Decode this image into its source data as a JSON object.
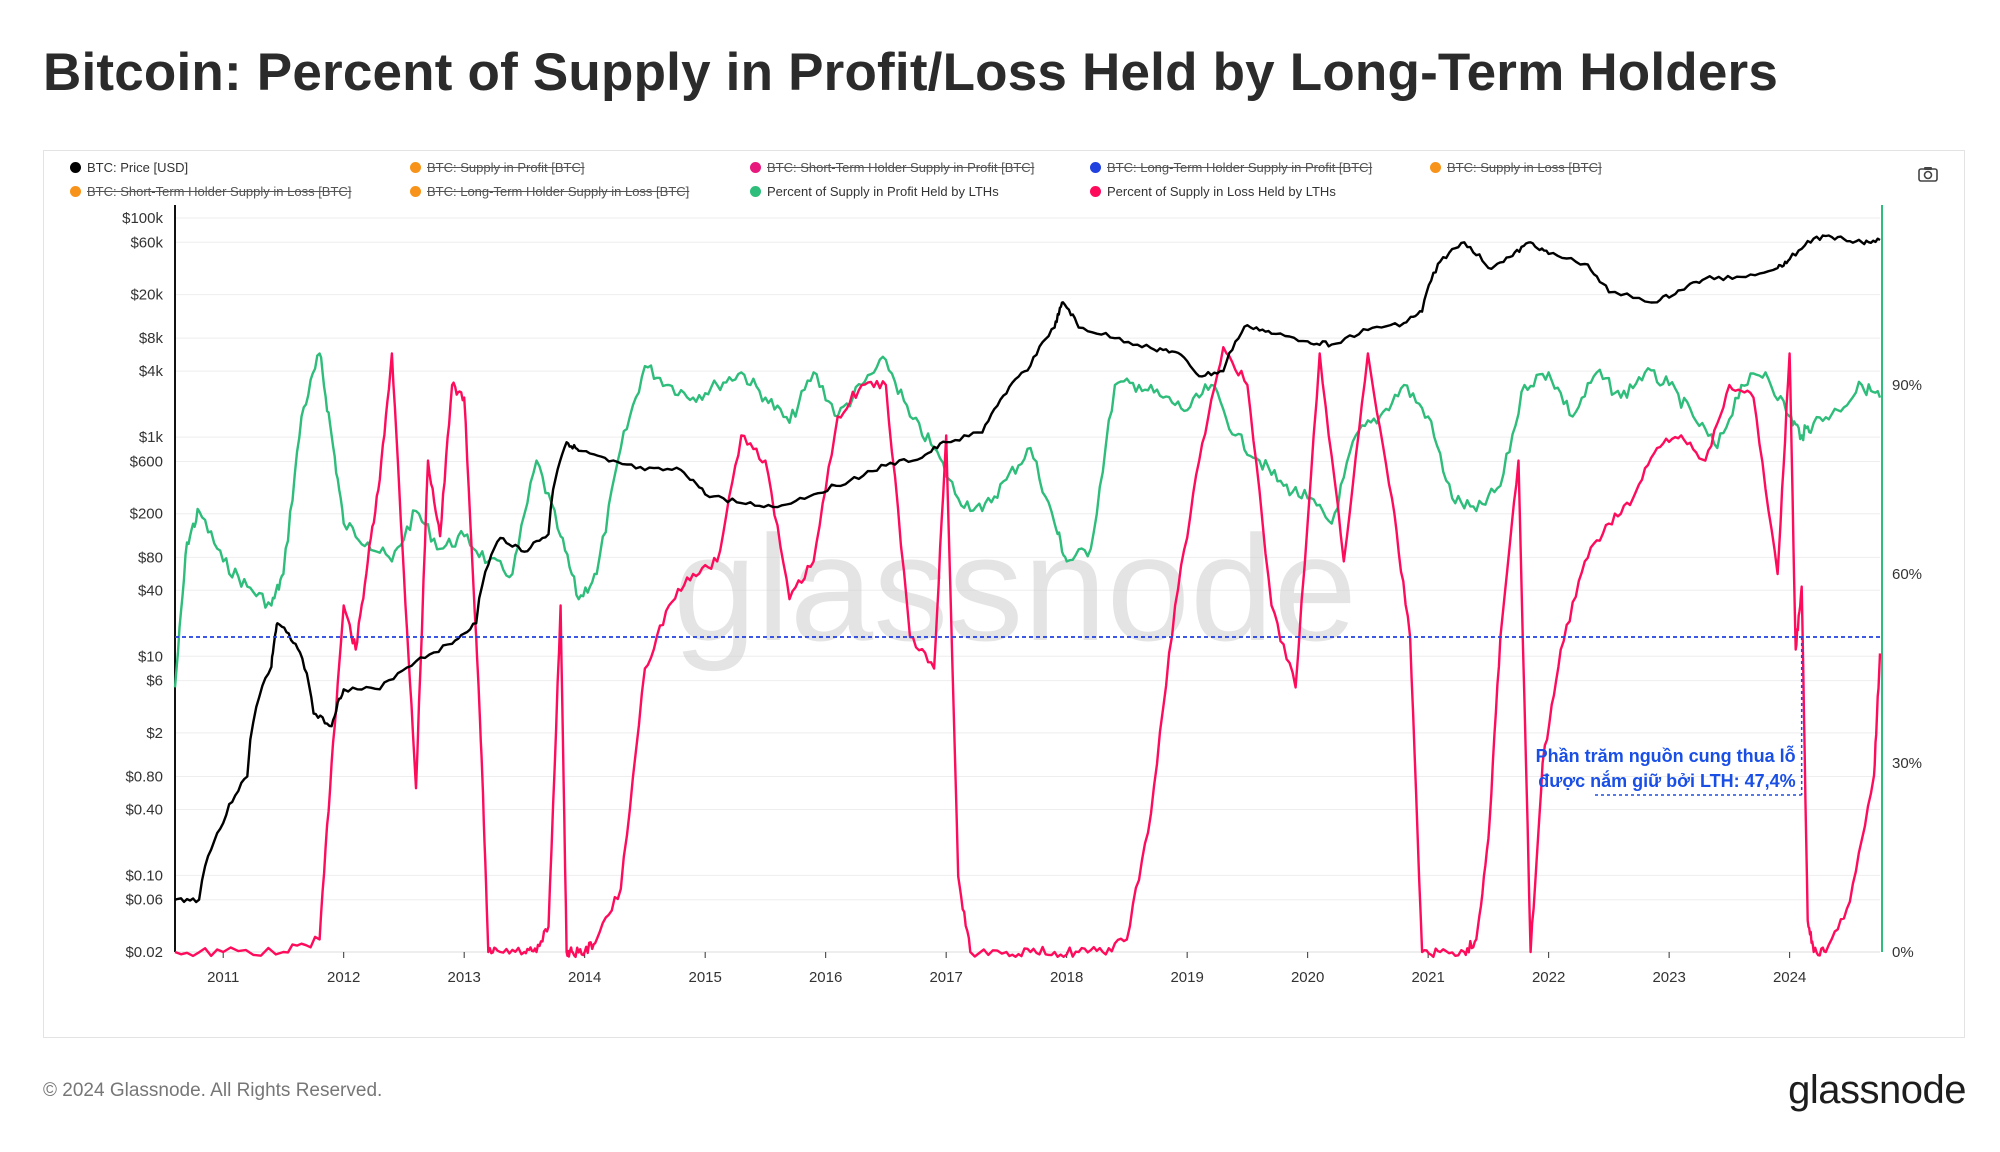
{
  "title": "Bitcoin: Percent of Supply in Profit/Loss Held by Long-Term Holders",
  "footer": "© 2024 Glassnode. All Rights Reserved.",
  "brand": "glassnode",
  "watermark": "glassnode",
  "camera_icon": "camera-icon",
  "legend": [
    {
      "label": "BTC: Price [USD]",
      "color": "#000000",
      "active": true
    },
    {
      "label": "BTC: Supply in Profit [BTC]",
      "color": "#f7931a",
      "active": false
    },
    {
      "label": "BTC: Short-Term Holder Supply in Profit [BTC]",
      "color": "#e8197d",
      "active": false
    },
    {
      "label": "BTC: Long-Term Holder Supply in Profit [BTC]",
      "color": "#2040e0",
      "active": false
    },
    {
      "label": "BTC: Supply in Loss [BTC]",
      "color": "#f7931a",
      "active": false
    },
    {
      "label": "BTC: Short-Term Holder Supply in Loss [BTC]",
      "color": "#f7931a",
      "active": false
    },
    {
      "label": "BTC: Long-Term Holder Supply in Loss [BTC]",
      "color": "#f7931a",
      "active": false
    },
    {
      "label": "Percent of Supply in Profit Held by LTHs",
      "color": "#2ebd7a",
      "active": true
    },
    {
      "label": "Percent of Supply in Loss Held by LTHs",
      "color": "#ff0b5c",
      "active": true
    }
  ],
  "annotation": {
    "line1": "Phần trăm nguồn cung thua lỗ",
    "line2": "được nắm giữ bởi LTH: 47,4%",
    "value": 47.4,
    "color": "#1a4fe6"
  },
  "chart_data": {
    "type": "line",
    "x_range": [
      2010.6,
      2024.75
    ],
    "x_ticks": [
      "2011",
      "2012",
      "2013",
      "2014",
      "2015",
      "2016",
      "2017",
      "2018",
      "2019",
      "2020",
      "2021",
      "2022",
      "2023",
      "2024"
    ],
    "y_left": {
      "scale": "log",
      "range": [
        0.02,
        100000
      ],
      "unit": "USD",
      "tick_labels": [
        "$100k",
        "$60k",
        "$20k",
        "$8k",
        "$4k",
        "$1k",
        "$600",
        "$200",
        "$80",
        "$40",
        "$10",
        "$6",
        "$2",
        "$0.80",
        "$0.40",
        "$0.10",
        "$0.06",
        "$0.02"
      ],
      "tick_values": [
        100000,
        60000,
        20000,
        8000,
        4000,
        1000,
        600,
        200,
        80,
        40,
        10,
        6,
        2,
        0.8,
        0.4,
        0.1,
        0.06,
        0.02
      ]
    },
    "y_right": {
      "scale": "linear",
      "range": [
        0,
        1.0
      ],
      "tick_labels": [
        "90%",
        "60%",
        "30%",
        "0%"
      ],
      "tick_values": [
        0.9,
        0.6,
        0.3,
        0
      ]
    },
    "reference_line": {
      "axis": "right",
      "value": 0.5,
      "style": "dashed",
      "color": "#2040e0"
    },
    "series": [
      {
        "name": "BTC: Price [USD]",
        "axis": "left",
        "color": "#000000",
        "x": [
          2010.6,
          2010.8,
          2011.0,
          2011.2,
          2011.4,
          2011.45,
          2011.6,
          2011.75,
          2011.9,
          2012.0,
          2012.3,
          2012.6,
          2012.9,
          2013.1,
          2013.3,
          2013.5,
          2013.7,
          2013.85,
          2013.95,
          2014.2,
          2014.5,
          2014.8,
          2015.0,
          2015.3,
          2015.6,
          2015.9,
          2016.2,
          2016.5,
          2016.8,
          2017.0,
          2017.3,
          2017.5,
          2017.7,
          2017.9,
          2017.97,
          2018.1,
          2018.4,
          2018.7,
          2018.9,
          2019.1,
          2019.3,
          2019.5,
          2019.7,
          2020.0,
          2020.2,
          2020.5,
          2020.8,
          2020.95,
          2021.1,
          2021.3,
          2021.5,
          2021.7,
          2021.85,
          2022.0,
          2022.3,
          2022.5,
          2022.9,
          2023.1,
          2023.3,
          2023.6,
          2023.9,
          2024.0,
          2024.2,
          2024.4,
          2024.6,
          2024.75
        ],
        "y": [
          0.06,
          0.06,
          0.3,
          0.8,
          8,
          20,
          13,
          3,
          2.3,
          5,
          5,
          9,
          13,
          20,
          120,
          90,
          130,
          900,
          750,
          600,
          500,
          500,
          300,
          250,
          230,
          300,
          400,
          550,
          650,
          900,
          1100,
          2500,
          4500,
          10000,
          17000,
          10000,
          8000,
          6500,
          6000,
          3600,
          4000,
          10500,
          8800,
          7500,
          7000,
          9500,
          11000,
          14000,
          40000,
          60000,
          35000,
          45000,
          60000,
          47000,
          38000,
          21000,
          17000,
          22000,
          28000,
          29000,
          35000,
          42000,
          65000,
          67000,
          60000,
          63000
        ]
      },
      {
        "name": "Percent of Supply in Profit Held by LTHs",
        "axis": "right",
        "color": "#2ebd7a",
        "x": [
          2010.6,
          2010.7,
          2010.8,
          2011.0,
          2011.2,
          2011.4,
          2011.5,
          2011.65,
          2011.8,
          2011.9,
          2012.0,
          2012.2,
          2012.4,
          2012.6,
          2012.8,
          2013.0,
          2013.2,
          2013.4,
          2013.6,
          2013.8,
          2013.95,
          2014.1,
          2014.3,
          2014.5,
          2014.7,
          2014.9,
          2015.1,
          2015.3,
          2015.5,
          2015.7,
          2015.9,
          2016.1,
          2016.3,
          2016.5,
          2016.7,
          2016.9,
          2017.1,
          2017.3,
          2017.5,
          2017.7,
          2017.9,
          2018.0,
          2018.2,
          2018.4,
          2018.6,
          2018.8,
          2019.0,
          2019.2,
          2019.4,
          2019.6,
          2019.8,
          2020.0,
          2020.2,
          2020.4,
          2020.6,
          2020.8,
          2021.0,
          2021.2,
          2021.4,
          2021.6,
          2021.8,
          2022.0,
          2022.2,
          2022.4,
          2022.6,
          2022.8,
          2023.0,
          2023.2,
          2023.4,
          2023.6,
          2023.8,
          2024.0,
          2024.1,
          2024.2,
          2024.4,
          2024.6,
          2024.75
        ],
        "y": [
          0.42,
          0.65,
          0.7,
          0.62,
          0.58,
          0.55,
          0.6,
          0.85,
          0.95,
          0.82,
          0.68,
          0.65,
          0.62,
          0.7,
          0.64,
          0.66,
          0.62,
          0.6,
          0.78,
          0.66,
          0.56,
          0.6,
          0.8,
          0.93,
          0.9,
          0.88,
          0.9,
          0.92,
          0.88,
          0.84,
          0.92,
          0.85,
          0.9,
          0.94,
          0.85,
          0.8,
          0.72,
          0.7,
          0.75,
          0.8,
          0.68,
          0.62,
          0.64,
          0.9,
          0.9,
          0.88,
          0.86,
          0.9,
          0.82,
          0.78,
          0.74,
          0.72,
          0.68,
          0.82,
          0.85,
          0.9,
          0.85,
          0.72,
          0.7,
          0.74,
          0.9,
          0.92,
          0.85,
          0.92,
          0.88,
          0.92,
          0.9,
          0.85,
          0.8,
          0.9,
          0.92,
          0.85,
          0.82,
          0.84,
          0.86,
          0.9,
          0.88
        ]
      },
      {
        "name": "Percent of Supply in Loss Held by LTHs",
        "axis": "right",
        "color": "#ff0b5c",
        "x": [
          2010.6,
          2011.0,
          2011.5,
          2011.8,
          2011.9,
          2012.0,
          2012.1,
          2012.2,
          2012.3,
          2012.4,
          2012.5,
          2012.6,
          2012.7,
          2012.8,
          2012.9,
          2013.0,
          2013.1,
          2013.15,
          2013.2,
          2013.3,
          2013.5,
          2013.6,
          2013.7,
          2013.8,
          2013.85,
          2013.9,
          2014.0,
          2014.1,
          2014.3,
          2014.5,
          2014.7,
          2014.9,
          2015.1,
          2015.3,
          2015.5,
          2015.7,
          2015.9,
          2016.1,
          2016.3,
          2016.5,
          2016.7,
          2016.9,
          2017.0,
          2017.1,
          2017.2,
          2017.5,
          2017.7,
          2017.9,
          2018.1,
          2018.3,
          2018.5,
          2018.7,
          2018.9,
          2019.1,
          2019.3,
          2019.5,
          2019.7,
          2019.9,
          2020.1,
          2020.3,
          2020.5,
          2020.7,
          2020.85,
          2020.95,
          2021.1,
          2021.3,
          2021.4,
          2021.5,
          2021.6,
          2021.75,
          2021.85,
          2021.95,
          2022.1,
          2022.3,
          2022.5,
          2022.7,
          2022.9,
          2023.1,
          2023.3,
          2023.5,
          2023.7,
          2023.9,
          2024.0,
          2024.05,
          2024.1,
          2024.15,
          2024.2,
          2024.3,
          2024.5,
          2024.7,
          2024.75
        ],
        "y": [
          0,
          0,
          0,
          0.02,
          0.3,
          0.55,
          0.48,
          0.62,
          0.75,
          0.95,
          0.6,
          0.26,
          0.78,
          0.66,
          0.9,
          0.88,
          0.5,
          0.28,
          0.0,
          0.0,
          0.0,
          0.0,
          0.04,
          0.55,
          0.0,
          0.0,
          0.0,
          0.02,
          0.1,
          0.45,
          0.55,
          0.6,
          0.62,
          0.82,
          0.78,
          0.56,
          0.62,
          0.85,
          0.9,
          0.9,
          0.5,
          0.45,
          0.82,
          0.12,
          0.0,
          0.0,
          0.0,
          0.0,
          0.0,
          0.0,
          0.02,
          0.22,
          0.55,
          0.78,
          0.96,
          0.9,
          0.55,
          0.42,
          0.95,
          0.62,
          0.95,
          0.72,
          0.5,
          0.0,
          0.0,
          0.0,
          0.02,
          0.18,
          0.5,
          0.78,
          0.0,
          0.3,
          0.48,
          0.62,
          0.68,
          0.72,
          0.8,
          0.82,
          0.78,
          0.9,
          0.88,
          0.6,
          0.95,
          0.48,
          0.58,
          0.05,
          0.0,
          0.0,
          0.08,
          0.28,
          0.474
        ]
      }
    ]
  }
}
